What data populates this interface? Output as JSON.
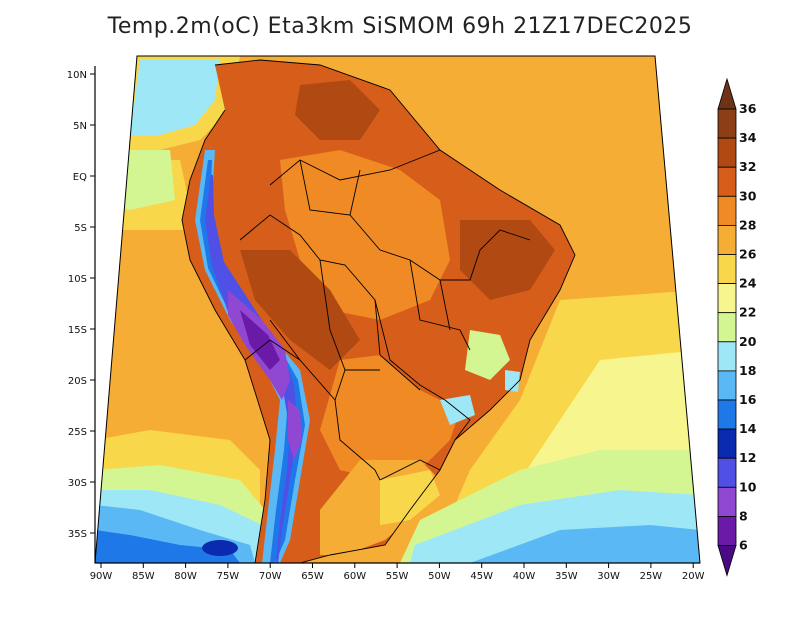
{
  "title": "Temp.2m(oC) Eta3km SiSMOM 69h 21Z17DEC2025",
  "map": {
    "lon_ticks": [
      "90W",
      "85W",
      "80W",
      "75W",
      "70W",
      "65W",
      "60W",
      "55W",
      "50W",
      "45W",
      "40W",
      "35W",
      "30W",
      "25W",
      "20W"
    ],
    "lat_ticks": [
      "10N",
      "5N",
      "EQ",
      "5S",
      "10S",
      "15S",
      "20S",
      "25S",
      "30S",
      "35S"
    ]
  },
  "colorbar": {
    "labels": [
      "36",
      "34",
      "32",
      "30",
      "28",
      "26",
      "24",
      "22",
      "20",
      "18",
      "16",
      "14",
      "12",
      "10",
      "8",
      "6"
    ],
    "colors": {
      "above_36": "#6e3216",
      "34_36": "#8c3e16",
      "32_34": "#b04a12",
      "30_32": "#d65e1a",
      "28_30": "#f08a24",
      "26_28": "#f5ad36",
      "24_26": "#f8d84a",
      "22_24": "#f6f58e",
      "20_22": "#d3f692",
      "18_20": "#9ee7f6",
      "16_18": "#5ab8f4",
      "14_16": "#1e78e8",
      "12_14": "#0a2ab0",
      "10_12": "#5050e6",
      "8_10": "#9048d2",
      "6_8": "#6a1aa6",
      "below_6": "#4a0a84"
    }
  }
}
